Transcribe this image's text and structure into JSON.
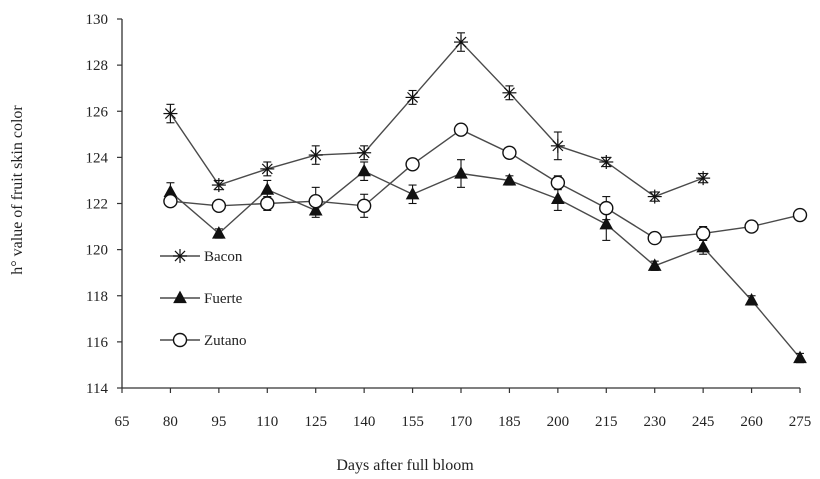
{
  "chart_data": {
    "type": "line",
    "title": "",
    "xlabel": "Days after full bloom",
    "ylabel": "h° value of  fruit  skin color",
    "xlim": [
      65,
      275
    ],
    "ylim": [
      114,
      130
    ],
    "xticks": [
      65,
      80,
      95,
      110,
      125,
      140,
      155,
      170,
      185,
      200,
      215,
      230,
      245,
      260,
      275
    ],
    "yticks": [
      114,
      116,
      118,
      120,
      122,
      124,
      126,
      128,
      130
    ],
    "legend_position": "left",
    "grid": false,
    "series": [
      {
        "name": "Bacon",
        "marker": "asterisk",
        "x": [
          80,
          95,
          110,
          125,
          140,
          155,
          170,
          185,
          200,
          215,
          230,
          245
        ],
        "y": [
          125.9,
          122.8,
          123.5,
          124.1,
          124.2,
          126.6,
          129.0,
          126.8,
          124.5,
          123.8,
          122.3,
          123.1
        ],
        "err": [
          0.4,
          0.2,
          0.3,
          0.4,
          0.3,
          0.3,
          0.4,
          0.3,
          0.6,
          0.2,
          0.2,
          0.2
        ]
      },
      {
        "name": "Fuerte",
        "marker": "filled-triangle",
        "x": [
          80,
          95,
          110,
          125,
          140,
          155,
          170,
          185,
          200,
          215,
          230,
          245,
          260,
          275
        ],
        "y": [
          122.5,
          120.7,
          122.6,
          121.7,
          123.4,
          122.4,
          123.3,
          123.0,
          122.2,
          121.1,
          119.3,
          120.1,
          117.8,
          115.3
        ],
        "err": [
          0.4,
          0.2,
          0.4,
          0.3,
          0.4,
          0.4,
          0.6,
          0.2,
          0.5,
          0.7,
          0.2,
          0.3,
          0.2,
          0.2
        ]
      },
      {
        "name": "Zutano",
        "marker": "open-circle",
        "x": [
          80,
          95,
          110,
          125,
          140,
          155,
          170,
          185,
          200,
          215,
          230,
          245,
          260,
          275
        ],
        "y": [
          122.1,
          121.9,
          122.0,
          122.1,
          121.9,
          123.7,
          125.2,
          124.2,
          122.9,
          121.8,
          120.5,
          120.7,
          121.0,
          121.5
        ],
        "err": [
          0.2,
          0.2,
          0.3,
          0.6,
          0.5,
          0.2,
          0.2,
          0.2,
          0.3,
          0.5,
          0.2,
          0.3,
          0.2,
          0.2
        ]
      }
    ]
  },
  "colors": {
    "line": "#4a4a4a",
    "marker": "#111111",
    "axis": "#333333"
  }
}
